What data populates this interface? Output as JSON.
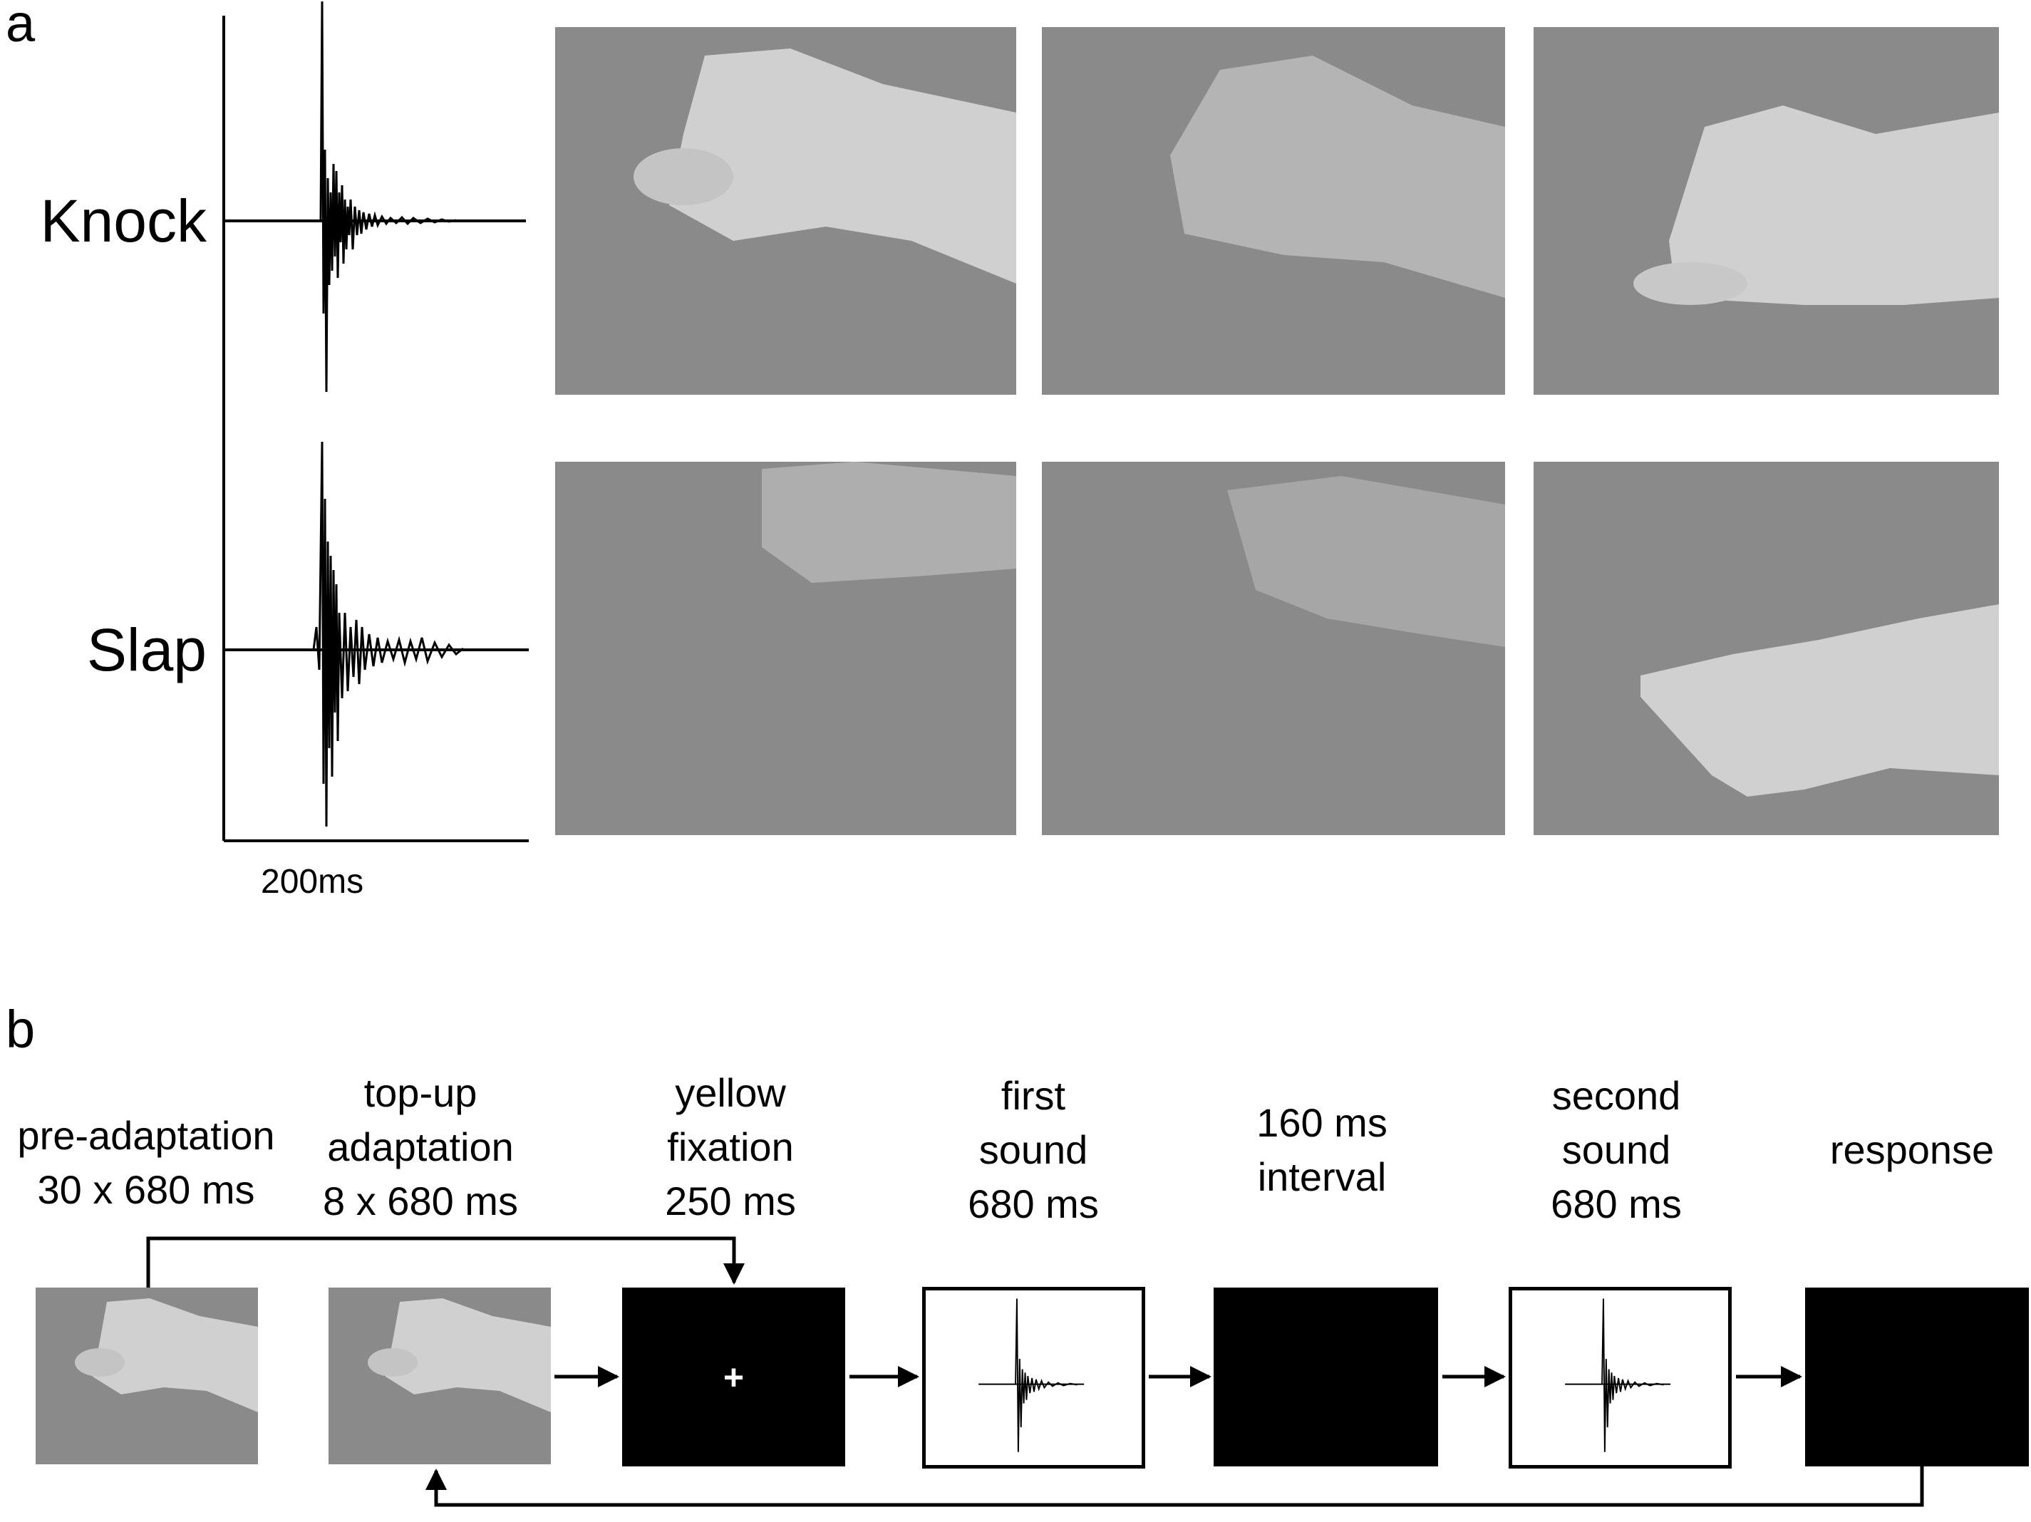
{
  "panel_a": {
    "letter": "a",
    "rows": [
      {
        "label": "Knock"
      },
      {
        "label": "Slap"
      }
    ],
    "scale_label": "200ms"
  },
  "panel_b": {
    "letter": "b",
    "stages": [
      {
        "lines": [
          "pre-adaptation",
          "30 x 680 ms"
        ]
      },
      {
        "lines": [
          "top-up",
          "adaptation",
          "8 x 680 ms"
        ]
      },
      {
        "lines": [
          "yellow",
          "fixation",
          "250 ms"
        ]
      },
      {
        "lines": [
          "first",
          "sound",
          "680 ms"
        ]
      },
      {
        "lines": [
          "160 ms",
          "interval"
        ]
      },
      {
        "lines": [
          "second",
          "sound",
          "680 ms"
        ]
      },
      {
        "lines": [
          "response"
        ]
      }
    ],
    "fixation_symbol": "+"
  },
  "colors": {
    "photo_bg": "#8a8a8a",
    "hand": "#cfcfcf",
    "black_screen": "#000000"
  }
}
